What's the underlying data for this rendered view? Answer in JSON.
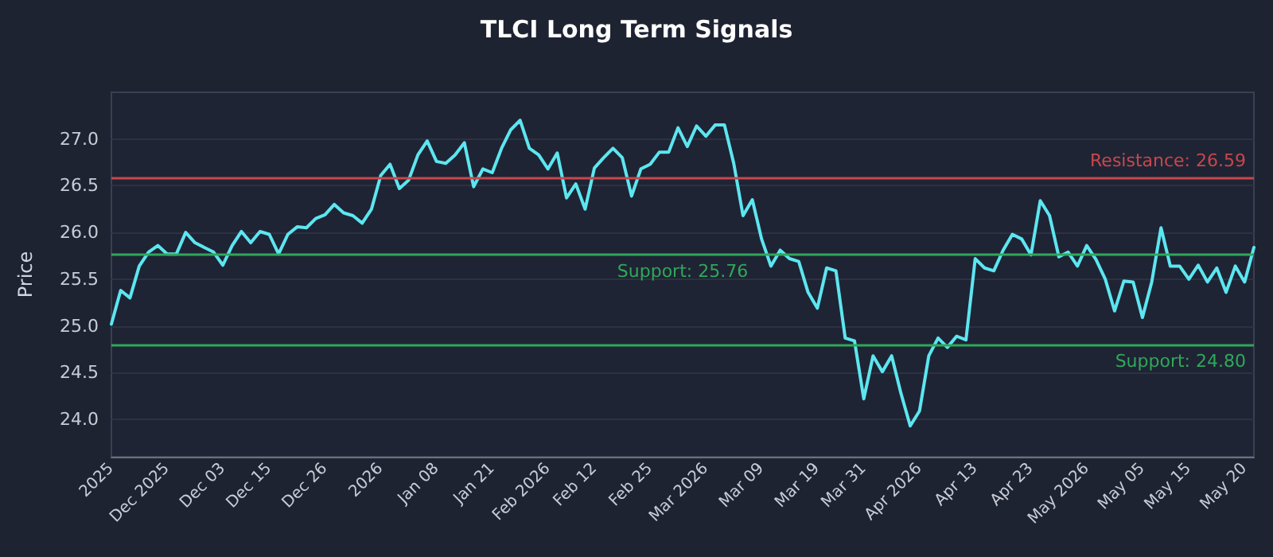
{
  "chart_data": {
    "type": "line",
    "title": "TLCI Long Term Signals",
    "ylabel": "Price",
    "categories": [
      "2025",
      null,
      null,
      null,
      null,
      null,
      "Dec 2025",
      null,
      null,
      null,
      null,
      null,
      "Dec 03",
      null,
      null,
      null,
      null,
      "Dec 15",
      null,
      null,
      null,
      null,
      null,
      "Dec 26",
      null,
      null,
      null,
      null,
      null,
      "2026",
      null,
      null,
      null,
      null,
      null,
      "Jan 08",
      null,
      null,
      null,
      null,
      null,
      "Jan 21",
      null,
      null,
      null,
      null,
      null,
      "Feb 2026",
      null,
      null,
      null,
      null,
      "Feb 12",
      null,
      null,
      null,
      null,
      null,
      "Feb 25",
      null,
      null,
      null,
      null,
      null,
      "Mar 2026",
      null,
      null,
      null,
      null,
      null,
      "Mar 09",
      null,
      null,
      null,
      null,
      null,
      "Mar 19",
      null,
      null,
      null,
      null,
      "Mar 31",
      null,
      null,
      null,
      null,
      null,
      "Apr 2026",
      null,
      null,
      null,
      null,
      null,
      "Apr 13",
      null,
      null,
      null,
      null,
      null,
      "Apr 23",
      null,
      null,
      null,
      null,
      null,
      "May 2026",
      null,
      null,
      null,
      null,
      null,
      "May 05",
      null,
      null,
      null,
      null,
      "May 15",
      null,
      null,
      null,
      null,
      null,
      "May 20",
      null
    ],
    "series": [
      {
        "color": "#5ce6f0",
        "values": [
          25.02,
          25.38,
          25.3,
          25.64,
          25.79,
          25.86,
          25.77,
          25.77,
          26.0,
          25.89,
          25.84,
          25.79,
          25.65,
          25.86,
          26.01,
          25.89,
          26.01,
          25.98,
          25.77,
          25.98,
          26.06,
          26.05,
          26.15,
          26.19,
          26.3,
          26.21,
          26.18,
          26.1,
          26.25,
          26.61,
          26.73,
          26.47,
          26.56,
          26.83,
          26.98,
          26.76,
          26.74,
          26.83,
          26.96,
          26.49,
          26.68,
          26.64,
          26.9,
          27.1,
          27.2,
          26.9,
          26.83,
          26.68,
          26.85,
          26.37,
          26.52,
          26.25,
          26.69,
          26.8,
          26.9,
          26.8,
          26.39,
          26.68,
          26.73,
          26.86,
          26.86,
          27.12,
          26.92,
          27.14,
          27.03,
          27.15,
          27.15,
          26.74,
          26.18,
          26.35,
          25.93,
          25.64,
          25.81,
          25.72,
          25.69,
          25.36,
          25.19,
          25.62,
          25.59,
          24.87,
          24.84,
          24.22,
          24.68,
          24.51,
          24.68,
          24.28,
          23.93,
          24.09,
          24.68,
          24.87,
          24.77,
          24.89,
          24.85,
          25.72,
          25.62,
          25.59,
          25.81,
          25.98,
          25.93,
          25.76,
          26.34,
          26.18,
          25.74,
          25.79,
          25.64,
          25.86,
          25.71,
          25.5,
          25.16,
          25.48,
          25.47,
          25.09,
          25.47,
          26.05,
          25.64,
          25.64,
          25.5,
          25.65,
          25.47,
          25.62,
          25.36,
          25.64,
          25.47,
          25.84
        ]
      }
    ],
    "ylim": [
      23.6,
      27.5
    ],
    "yticks": [
      {
        "value": 24,
        "label": "24.0"
      },
      24.5,
      {
        "value": 25,
        "label": "25.0"
      },
      25.5,
      {
        "value": 26,
        "label": "26.0"
      },
      26.5,
      {
        "value": 27,
        "label": "27.0"
      }
    ],
    "grid": "y",
    "marker": "none",
    "line_style": "solid",
    "ref_lines": [
      {
        "axis": "y",
        "value": 26.59,
        "label": "Resistance: 26.59",
        "color": "#c9474c"
      },
      {
        "axis": "y",
        "value": 25.76,
        "label": "Support: 25.76",
        "color": "#2fa85a"
      },
      {
        "axis": "y",
        "value": 24.8,
        "label": "Support: 24.80",
        "color": "#2fa85a"
      }
    ]
  }
}
